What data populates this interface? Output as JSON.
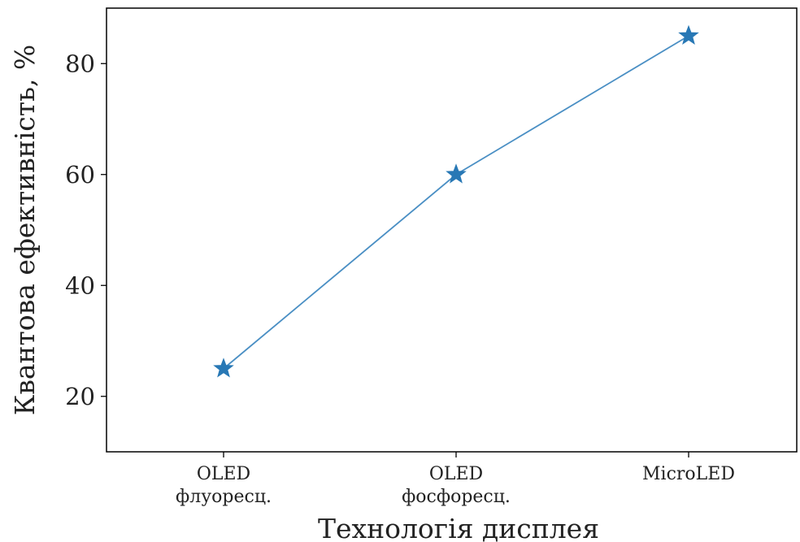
{
  "chart_data": {
    "type": "line",
    "categories": [
      [
        "OLED",
        "флуоресц."
      ],
      [
        "OLED",
        "фосфоресц."
      ],
      [
        "MicroLED"
      ]
    ],
    "values": [
      25,
      60,
      85
    ],
    "xlabel": "Технологія дисплея",
    "ylabel": "Квантова ефективність, %",
    "ylim": [
      10,
      90
    ],
    "yticks": [
      20,
      40,
      60,
      80
    ],
    "grid": false,
    "marker": "star",
    "line_color": "#4a8fc4",
    "marker_color": "#2878b5"
  }
}
